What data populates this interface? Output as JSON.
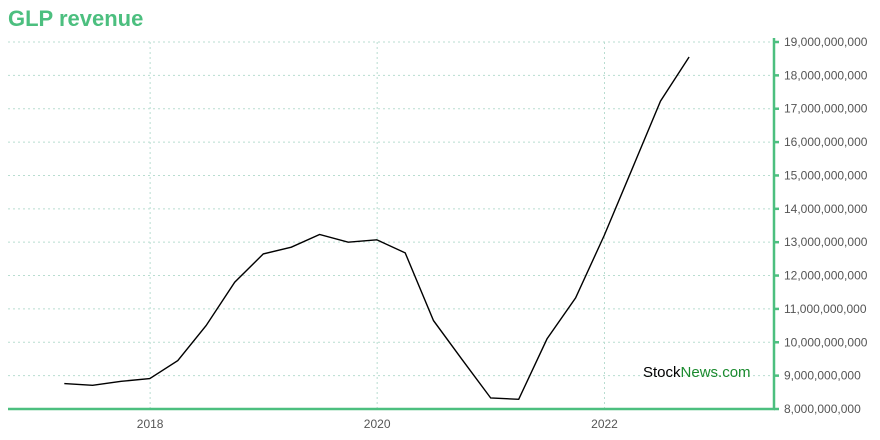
{
  "chart_title": "GLP revenue",
  "watermark": {
    "part1": "Stock",
    "part2": "News.com"
  },
  "colors": {
    "title": "#4cbf7f",
    "axis": "#4cbf7f",
    "line": "#000000",
    "grid": "#b8ddd0",
    "watermark_accent": "#1a8a2e"
  },
  "chart_data": {
    "type": "line",
    "title": "GLP revenue",
    "xlabel": "",
    "ylabel": "",
    "x_ticks": [
      "2018",
      "2020",
      "2022"
    ],
    "y_ticks": [
      "8,000,000,000",
      "9,000,000,000",
      "10,000,000,000",
      "11,000,000,000",
      "12,000,000,000",
      "13,000,000,000",
      "14,000,000,000",
      "15,000,000,000",
      "16,000,000,000",
      "17,000,000,000",
      "18,000,000,000",
      "19,000,000,000"
    ],
    "ylim": [
      8000000000,
      19000000000
    ],
    "xlim": [
      "2016-10-01",
      "2023-06-30"
    ],
    "grid": true,
    "y_axis_side": "right",
    "series": [
      {
        "points": [
          [
            "2017-03-31",
            8760000000
          ],
          [
            "2017-06-30",
            8710000000
          ],
          [
            "2017-09-30",
            8830000000
          ],
          [
            "2017-12-31",
            8910000000
          ],
          [
            "2018-03-31",
            9450000000
          ],
          [
            "2018-06-30",
            10500000000
          ],
          [
            "2018-09-30",
            11800000000
          ],
          [
            "2018-12-31",
            12650000000
          ],
          [
            "2019-03-31",
            12850000000
          ],
          [
            "2019-06-30",
            13230000000
          ],
          [
            "2019-09-30",
            13000000000
          ],
          [
            "2019-12-31",
            13070000000
          ],
          [
            "2020-03-31",
            12680000000
          ],
          [
            "2020-06-30",
            10650000000
          ],
          [
            "2020-09-30",
            9480000000
          ],
          [
            "2020-12-31",
            8330000000
          ],
          [
            "2021-03-31",
            8290000000
          ],
          [
            "2021-06-30",
            10100000000
          ],
          [
            "2021-09-30",
            11330000000
          ],
          [
            "2021-12-31",
            13200000000
          ],
          [
            "2022-03-31",
            15200000000
          ],
          [
            "2022-06-30",
            17230000000
          ],
          [
            "2022-09-30",
            18550000000
          ]
        ]
      }
    ]
  }
}
